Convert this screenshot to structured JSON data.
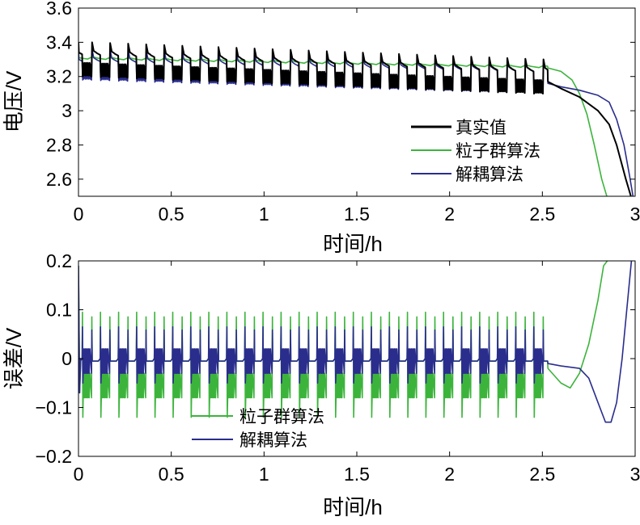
{
  "chart_data": [
    {
      "type": "line",
      "xlabel": "时间/h",
      "ylabel": "电压/V",
      "xlim": [
        0,
        3
      ],
      "ylim": [
        2.5,
        3.6
      ],
      "xticks": [
        0,
        0.5,
        1,
        1.5,
        2,
        2.5,
        3
      ],
      "xtick_labels": [
        "0",
        "0.5",
        "1",
        "1.5",
        "2",
        "2.5",
        "3"
      ],
      "yticks": [
        2.6,
        2.8,
        3.0,
        3.2,
        3.4,
        3.6
      ],
      "ytick_labels": [
        "2.6",
        "2.8",
        "3",
        "3.2",
        "3.4",
        "3.6"
      ],
      "legend_position": "bottom-right",
      "pulse_cycles": 26,
      "pulse_end_time": 2.53,
      "series": [
        {
          "name": "真实值",
          "color": "#000000",
          "rest_upper_start": 3.34,
          "rest_upper_end": 3.24,
          "pulse_low_start": 3.2,
          "pulse_low_end": 3.1,
          "tail_x": [
            2.53,
            2.6,
            2.7,
            2.8,
            2.86,
            2.9,
            2.95,
            2.98
          ],
          "tail_y": [
            3.17,
            3.13,
            3.08,
            3.0,
            2.92,
            2.8,
            2.6,
            2.49
          ]
        },
        {
          "name": "粒子群算法",
          "color": "#3cb43c",
          "rest_upper_start": 3.31,
          "rest_upper_end": 3.26,
          "tail_x": [
            2.53,
            2.6,
            2.66,
            2.7,
            2.74,
            2.78,
            2.82,
            2.85
          ],
          "tail_y": [
            3.25,
            3.23,
            3.18,
            3.1,
            2.98,
            2.8,
            2.6,
            2.49
          ]
        },
        {
          "name": "解耦算法",
          "color": "#2a2d8c",
          "rest_upper_start": 3.3,
          "rest_upper_end": 3.24,
          "pulse_low_start": 3.18,
          "pulse_low_end": 3.1,
          "tail_x": [
            2.53,
            2.6,
            2.7,
            2.8,
            2.86,
            2.9,
            2.94,
            2.97,
            2.99
          ],
          "tail_y": [
            3.16,
            3.14,
            3.12,
            3.09,
            3.05,
            2.95,
            2.8,
            2.62,
            2.49
          ]
        }
      ]
    },
    {
      "type": "line",
      "xlabel": "时间/h",
      "ylabel": "误差/V",
      "xlim": [
        0,
        3
      ],
      "ylim": [
        -0.2,
        0.2
      ],
      "xticks": [
        0,
        0.5,
        1,
        1.5,
        2,
        2.5,
        3
      ],
      "xtick_labels": [
        "0",
        "0.5",
        "1",
        "1.5",
        "2",
        "2.5",
        "3"
      ],
      "yticks": [
        -0.2,
        -0.1,
        0,
        0.1,
        0.2
      ],
      "ytick_labels": [
        "−0.2",
        "−0.1",
        "0",
        "0.1",
        "0.2"
      ],
      "legend_position": "bottom-center",
      "pulse_cycles": 26,
      "pulse_end_time": 2.53,
      "series": [
        {
          "name": "粒子群算法",
          "color": "#3cb43c",
          "spike_up": 0.095,
          "spike_down": -0.12,
          "pulse_band": [
            -0.08,
            -0.03
          ],
          "tail_x": [
            2.53,
            2.6,
            2.65,
            2.7,
            2.75,
            2.8,
            2.83,
            2.85
          ],
          "tail_y": [
            -0.02,
            -0.05,
            -0.06,
            -0.03,
            0.03,
            0.12,
            0.19,
            0.2
          ]
        },
        {
          "name": "解耦算法",
          "color": "#2a2d8c",
          "spike_up": 0.065,
          "spike_down": -0.05,
          "pulse_band": [
            -0.03,
            0.02
          ],
          "tail_x": [
            2.53,
            2.6,
            2.7,
            2.75,
            2.8,
            2.84,
            2.87,
            2.9,
            2.93,
            2.96,
            2.98
          ],
          "tail_y": [
            -0.01,
            -0.015,
            -0.02,
            -0.04,
            -0.09,
            -0.13,
            -0.13,
            -0.09,
            0.0,
            0.12,
            0.2
          ]
        }
      ]
    }
  ]
}
